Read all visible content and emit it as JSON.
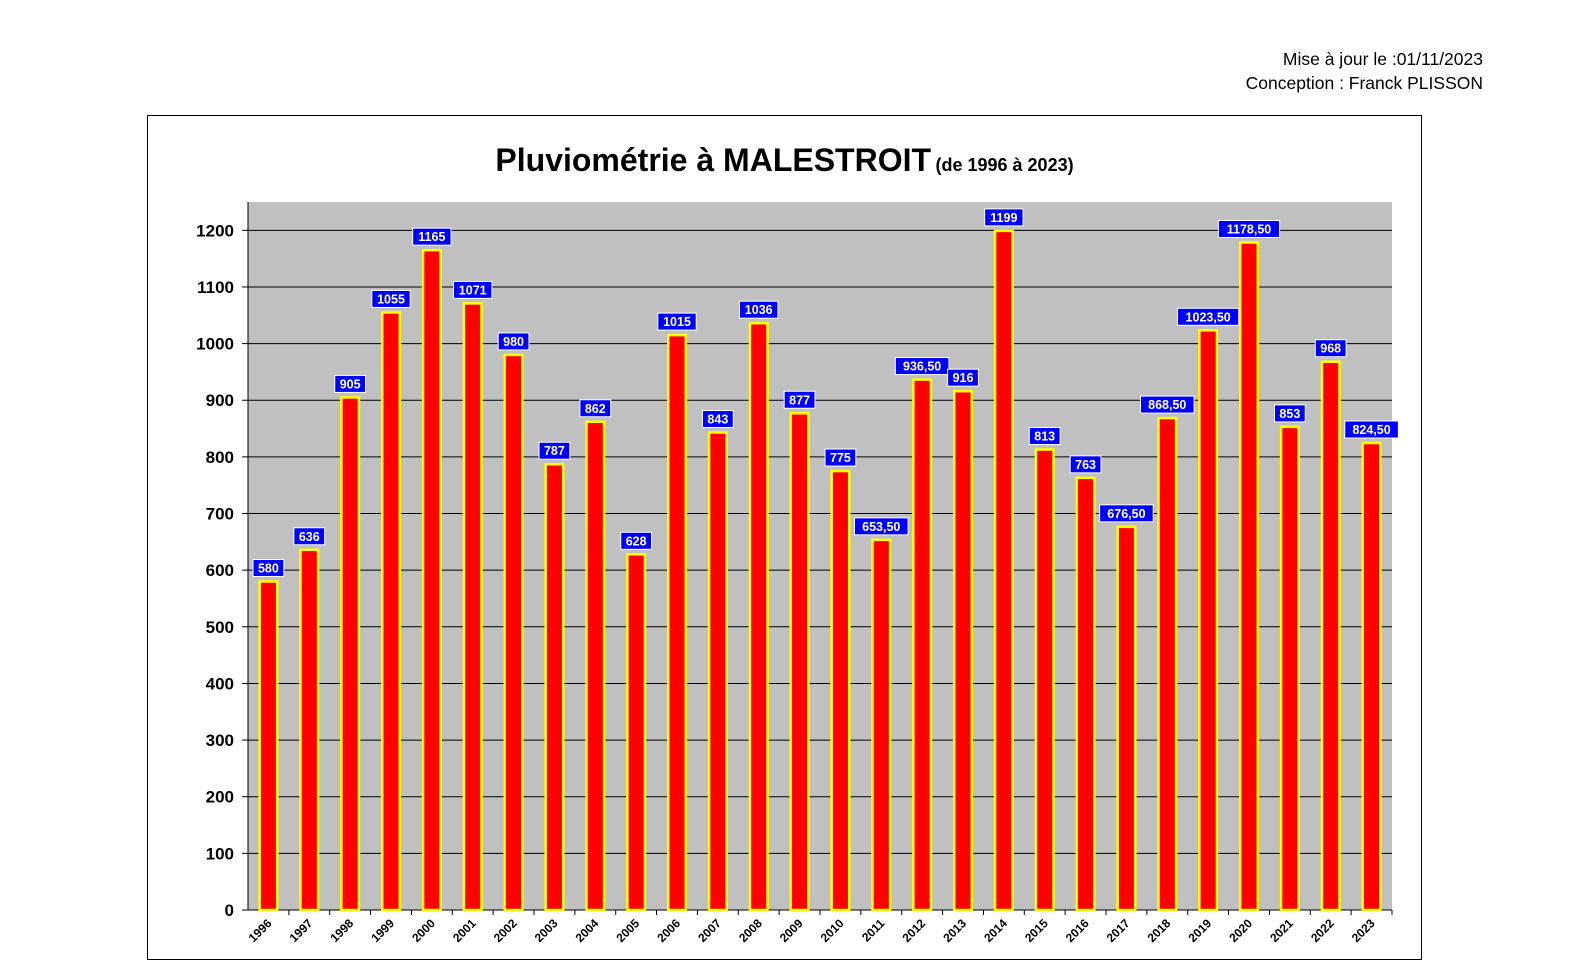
{
  "header": {
    "update_line": "Mise à jour le :01/11/2023",
    "author_line": "Conception : Franck PLISSON"
  },
  "colors": {
    "bar_fill": "#ff0000",
    "bar_border": "#ffff00",
    "plot_bg": "#c0c0c0",
    "label_bg": "#0000ff",
    "label_text": "#ffffff"
  },
  "chart_data": {
    "type": "bar",
    "title": "Pluviométrie à MALESTROIT",
    "subtitle": "(de 1996 à 2023)",
    "xlabel": "",
    "ylabel": "",
    "ylim": [
      0,
      1250
    ],
    "yticks": [
      0,
      100,
      200,
      300,
      400,
      500,
      600,
      700,
      800,
      900,
      1000,
      1100,
      1200
    ],
    "grid": true,
    "legend": "none",
    "categories": [
      "1996",
      "1997",
      "1998",
      "1999",
      "2000",
      "2001",
      "2002",
      "2003",
      "2004",
      "2005",
      "2006",
      "2007",
      "2008",
      "2009",
      "2010",
      "2011",
      "2012",
      "2013",
      "2014",
      "2015",
      "2016",
      "2017",
      "2018",
      "2019",
      "2020",
      "2021",
      "2022",
      "2023"
    ],
    "values": [
      580,
      636,
      905,
      1055,
      1165,
      1071,
      980,
      787,
      862,
      628,
      1015,
      843,
      1036,
      877,
      775,
      653.5,
      936.5,
      916,
      1199,
      813,
      763,
      676.5,
      868.5,
      1023.5,
      1178.5,
      853,
      968,
      824.5
    ],
    "value_labels": [
      "580",
      "636",
      "905",
      "1055",
      "1165",
      "1071",
      "980",
      "787",
      "862",
      "628",
      "1015",
      "843",
      "1036",
      "877",
      "775",
      "653,50",
      "936,50",
      "916",
      "1199",
      "813",
      "763",
      "676,50",
      "868,50",
      "1023,50",
      "1178,50",
      "853",
      "968",
      "824,50"
    ]
  }
}
